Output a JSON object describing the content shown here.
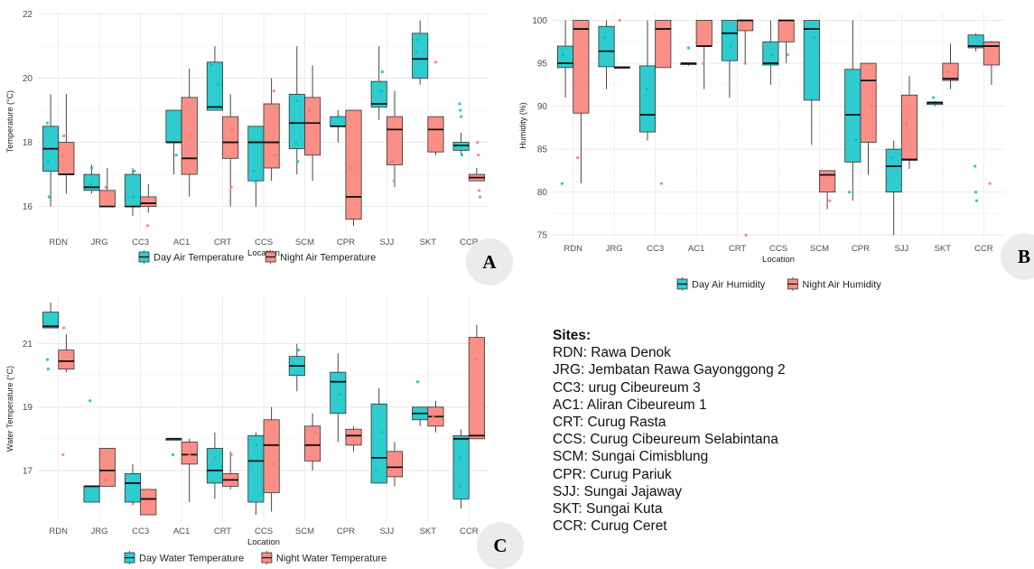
{
  "chart_data": [
    {
      "id": "A",
      "type": "boxplot",
      "xlabel": "Location",
      "ylabel": "Temperature (°C)",
      "ylim": [
        15.2,
        22.1
      ],
      "yticks": [
        16,
        18,
        20,
        22
      ],
      "categories": [
        "RDN",
        "JRG",
        "CC3",
        "AC1",
        "CRT",
        "CCS",
        "SCM",
        "CPR",
        "SJJ",
        "SKT",
        "CCR"
      ],
      "grid": true,
      "legend_position": "bottom",
      "series": [
        {
          "name": "Day Air Temperature",
          "color": "#00BFC4",
          "boxes": [
            [
              16,
              17.1,
              17.8,
              18.5,
              19.5
            ],
            [
              16.4,
              16.5,
              16.6,
              17,
              17.3
            ],
            [
              15.7,
              16,
              16,
              17,
              17.2
            ],
            [
              17,
              18,
              18,
              19,
              19
            ],
            [
              19,
              19,
              19.1,
              20.5,
              21
            ],
            [
              16,
              16.8,
              18,
              18.5,
              18.5
            ],
            [
              17,
              17.8,
              18.6,
              19.5,
              21
            ],
            [
              18,
              18.5,
              18.5,
              18.8,
              19
            ],
            [
              18.7,
              19.1,
              19.2,
              19.9,
              21
            ],
            [
              19.8,
              20,
              20.6,
              21.4,
              21.8
            ],
            [
              17.6,
              17.75,
              17.9,
              18,
              18.3
            ]
          ],
          "points": [
            [
              0,
              18.6
            ],
            [
              0,
              17.4
            ],
            [
              0,
              16.3
            ],
            [
              1,
              16.7
            ],
            [
              1,
              17.2
            ],
            [
              2,
              16.3
            ],
            [
              2,
              17.1
            ],
            [
              3,
              17.6
            ],
            [
              4,
              19.8
            ],
            [
              4,
              20.4
            ],
            [
              5,
              17.1
            ],
            [
              5,
              16.8
            ],
            [
              6,
              18
            ],
            [
              6,
              19.3
            ],
            [
              6,
              17.4
            ],
            [
              7,
              18.8
            ],
            [
              8,
              19.6
            ],
            [
              8,
              20.2
            ],
            [
              9,
              20.8
            ],
            [
              9,
              21.2
            ],
            [
              10,
              19.2
            ],
            [
              10,
              19
            ],
            [
              10,
              18.8
            ],
            [
              10,
              17.6
            ]
          ]
        },
        {
          "name": "Night Air Temperature",
          "color": "#F8766D",
          "boxes": [
            [
              16.4,
              17,
              17,
              18,
              19.5
            ],
            [
              16,
              16,
              16,
              16.5,
              17.2
            ],
            [
              15.8,
              16,
              16.1,
              16.3,
              16.7
            ],
            [
              16.3,
              17,
              17.5,
              19.4,
              20.3
            ],
            [
              16,
              17.5,
              18,
              18.8,
              19.5
            ],
            [
              16.8,
              17.2,
              18,
              19.2,
              20
            ],
            [
              16.8,
              17.6,
              18.6,
              19.4,
              20.4
            ],
            [
              15.4,
              15.6,
              16.3,
              19,
              19
            ],
            [
              16.6,
              17.3,
              18.4,
              18.8,
              19.6
            ],
            [
              17.6,
              17.7,
              18.4,
              18.8,
              18.8
            ],
            [
              16.8,
              16.8,
              16.9,
              17,
              17.2
            ]
          ],
          "points": [
            [
              0,
              17.6
            ],
            [
              0,
              18.2
            ],
            [
              1,
              16.6
            ],
            [
              2,
              15.4
            ],
            [
              3,
              18.2
            ],
            [
              4,
              16.6
            ],
            [
              4,
              18.4
            ],
            [
              5,
              19.6
            ],
            [
              5,
              17.6
            ],
            [
              6,
              19
            ],
            [
              7,
              17.2
            ],
            [
              8,
              17.4
            ],
            [
              8,
              16.8
            ],
            [
              9,
              20.5
            ],
            [
              10,
              18
            ],
            [
              10,
              17.6
            ],
            [
              10,
              16.5
            ],
            [
              10,
              16.3
            ]
          ]
        }
      ]
    },
    {
      "id": "B",
      "type": "boxplot",
      "xlabel": "Location",
      "ylabel": "Humidity (%)",
      "ylim": [
        74.6,
        100.9
      ],
      "yticks": [
        75,
        80,
        85,
        90,
        95,
        100
      ],
      "categories": [
        "RDN",
        "JRG",
        "CC3",
        "AC1",
        "CRT",
        "CCS",
        "SCM",
        "CPR",
        "SJJ",
        "SKT",
        "CCR"
      ],
      "grid": true,
      "legend_position": "bottom",
      "series": [
        {
          "name": "Day Air Humidity",
          "color": "#00BFC4",
          "boxes": [
            [
              91,
              94.5,
              95,
              97,
              100
            ],
            [
              92,
              94.6,
              96.4,
              99.3,
              100
            ],
            [
              86,
              87,
              89,
              94.7,
              100
            ],
            [
              94.7,
              94.9,
              95,
              95,
              95
            ],
            [
              91,
              95.3,
              98.5,
              100,
              100
            ],
            [
              92.5,
              94.8,
              95,
              97.5,
              100
            ],
            [
              85.5,
              90.7,
              99,
              100,
              100
            ],
            [
              79,
              83.5,
              89,
              94.3,
              100
            ],
            [
              75,
              80,
              83,
              85,
              86
            ],
            [
              90,
              90.2,
              90.4,
              90.5,
              90.6
            ],
            [
              96.4,
              96.8,
              97,
              98.3,
              98.5
            ]
          ],
          "points": [
            [
              0,
              81
            ],
            [
              0,
              96
            ],
            [
              1,
              98
            ],
            [
              2,
              92
            ],
            [
              3,
              96.8
            ],
            [
              4,
              97
            ],
            [
              5,
              96
            ],
            [
              6,
              98
            ],
            [
              7,
              86
            ],
            [
              7,
              80
            ],
            [
              8,
              84
            ],
            [
              9,
              91
            ],
            [
              10,
              83
            ],
            [
              10,
              80
            ],
            [
              10,
              79
            ]
          ]
        },
        {
          "name": "Night Air Humidity",
          "color": "#F8766D",
          "boxes": [
            [
              81,
              89.2,
              99,
              100,
              100
            ],
            [
              94.5,
              94.5,
              94.5,
              94.6,
              94.6
            ],
            [
              94.5,
              94.5,
              99,
              100,
              100
            ],
            [
              92,
              97,
              97,
              100,
              100
            ],
            [
              95,
              98.8,
              100,
              100,
              100
            ],
            [
              95,
              97.5,
              100,
              100,
              100
            ],
            [
              78,
              80,
              82,
              82.5,
              82.5
            ],
            [
              82,
              85.8,
              93,
              95,
              95
            ],
            [
              82.7,
              83.7,
              83.8,
              91.3,
              93.5
            ],
            [
              92,
              93,
              93.2,
              95,
              97.3
            ],
            [
              92.5,
              94.8,
              97,
              97.5,
              97.6
            ]
          ],
          "points": [
            [
              0,
              84
            ],
            [
              1,
              100
            ],
            [
              2,
              81
            ],
            [
              3,
              95
            ],
            [
              4,
              95
            ],
            [
              4,
              75
            ],
            [
              5,
              96
            ],
            [
              6,
              79
            ],
            [
              7,
              90
            ],
            [
              8,
              88
            ],
            [
              9,
              94
            ],
            [
              10,
              81
            ]
          ]
        }
      ]
    },
    {
      "id": "C",
      "type": "boxplot",
      "xlabel": "Location",
      "ylabel": "Water Temperature (°C)",
      "ylim": [
        15.4,
        22.5
      ],
      "yticks": [
        17,
        19,
        21
      ],
      "categories": [
        "RDN",
        "JRG",
        "CC3",
        "AC1",
        "CRT",
        "CCS",
        "SCM",
        "CPR",
        "SJJ",
        "SKT",
        "CCR"
      ],
      "grid": true,
      "legend_position": "bottom",
      "series": [
        {
          "name": "Day Water Temperature",
          "color": "#00BFC4",
          "boxes": [
            [
              21.5,
              21.5,
              21.55,
              22.0,
              22.3
            ],
            [
              16,
              16,
              16.5,
              16.5,
              16.5
            ],
            [
              15.9,
              16,
              16.6,
              16.9,
              17.2
            ],
            [
              18,
              18,
              18,
              18,
              18
            ],
            [
              16.1,
              16.6,
              17,
              17.7,
              18.2
            ],
            [
              15.6,
              16,
              17.3,
              18.1,
              18.2
            ],
            [
              19.5,
              20,
              20.3,
              20.6,
              21
            ],
            [
              17.9,
              18.8,
              19.8,
              20.1,
              20.7
            ],
            [
              16.6,
              16.6,
              17.4,
              19.1,
              19.6
            ],
            [
              18.4,
              18.6,
              18.8,
              19,
              19
            ],
            [
              15.8,
              16.1,
              18,
              18.1,
              18.3
            ]
          ],
          "points": [
            [
              0,
              20.5
            ],
            [
              0,
              20.2
            ],
            [
              1,
              19.2
            ],
            [
              3,
              17.5
            ],
            [
              4,
              17.4
            ],
            [
              5,
              17.8
            ],
            [
              6,
              20.8
            ],
            [
              7,
              19.4
            ],
            [
              8,
              18.2
            ],
            [
              8,
              17
            ],
            [
              9,
              19.8
            ],
            [
              10,
              17.4
            ],
            [
              10,
              16.5
            ]
          ]
        },
        {
          "name": "Night Water Temperature",
          "color": "#F8766D",
          "boxes": [
            [
              20.1,
              20.2,
              20.45,
              20.8,
              21.3
            ],
            [
              16.6,
              16.5,
              17,
              17.7,
              17.7
            ],
            [
              15.6,
              15.6,
              16.1,
              16.4,
              16.4
            ],
            [
              16,
              17.2,
              17.5,
              17.9,
              18
            ],
            [
              16.4,
              16.5,
              16.7,
              16.9,
              17.6
            ],
            [
              15.7,
              16.3,
              17.8,
              18.6,
              19
            ],
            [
              17,
              17.3,
              17.8,
              18.4,
              18.8
            ],
            [
              17.6,
              17.8,
              18.1,
              18.3,
              18.4
            ],
            [
              16.5,
              16.8,
              17.1,
              17.6,
              17.9
            ],
            [
              18.2,
              18.4,
              18.7,
              19.0,
              19.2
            ],
            [
              18,
              18,
              18.1,
              21.2,
              21.6
            ]
          ],
          "points": [
            [
              0,
              17.5
            ],
            [
              0,
              21.5
            ],
            [
              1,
              16.7
            ],
            [
              2,
              16.4
            ],
            [
              3,
              17.5
            ],
            [
              4,
              17.5
            ],
            [
              5,
              17.2
            ],
            [
              6,
              18.2
            ],
            [
              7,
              18.3
            ],
            [
              8,
              17.0
            ],
            [
              9,
              18.7
            ],
            [
              10,
              20.5
            ]
          ]
        }
      ]
    }
  ],
  "badges": {
    "a": "A",
    "b": "B",
    "c": "C"
  },
  "sites": {
    "title": "Sites:",
    "items": [
      "RDN: Rawa Denok",
      "JRG: Jembatan Rawa Gayonggong 2",
      "CC3: urug Cibeureum 3",
      "AC1: Aliran Cibeureum 1",
      "CRT: Curug Rasta",
      "CCS: Curug Cibeureum Selabintana",
      "SCM: Sungai Cimisblung",
      "CPR: Curug Pariuk",
      "SJJ: Sungai Jajaway",
      "SKT: Sungai Kuta",
      "CCR: Curug Ceret"
    ]
  }
}
